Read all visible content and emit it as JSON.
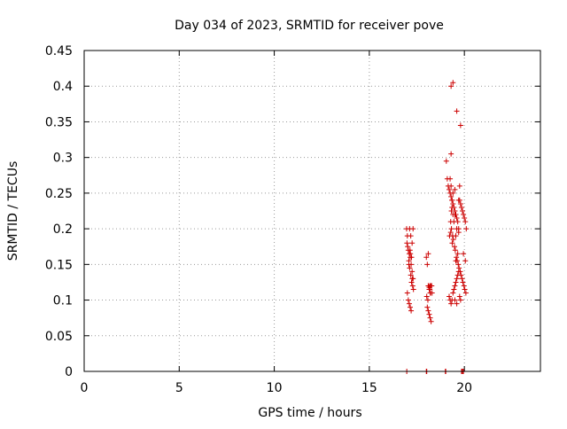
{
  "chart_data": {
    "type": "scatter",
    "title": "Day 034 of 2023, SRMTID for receiver pove",
    "xlabel": "GPS time / hours",
    "ylabel": "SRMTID / TECUs",
    "xlim": [
      0,
      24
    ],
    "ylim": [
      0,
      0.45
    ],
    "x_ticks": [
      0,
      5,
      10,
      15,
      20
    ],
    "x_tick_labels": [
      "0",
      "5",
      "10",
      "15",
      "20"
    ],
    "y_ticks": [
      0,
      0.05,
      0.1,
      0.15,
      0.2,
      0.25,
      0.3,
      0.35,
      0.4,
      0.45
    ],
    "y_tick_labels": [
      "0",
      "0.05",
      "0.1",
      "0.15",
      "0.2",
      "0.25",
      "0.3",
      "0.35",
      "0.4",
      "0.45"
    ],
    "grid": true,
    "marker": "plus",
    "color": "#cc0000",
    "series": [
      {
        "x": [
          16.96,
          17.0,
          17.05,
          17.1,
          17.15,
          17.2,
          17.25,
          17.3,
          16.98,
          17.02,
          17.08,
          17.12,
          17.18,
          17.22,
          17.28,
          17.32,
          17.0,
          17.05,
          17.1,
          17.15,
          17.2,
          17.25,
          17.3,
          17.12,
          17.18,
          17.22,
          17.08,
          17.14,
          17.26,
          17.16,
          18.0,
          18.05,
          18.1,
          18.15,
          18.2,
          18.25,
          18.3,
          18.02,
          18.08,
          18.12,
          18.18,
          18.22,
          18.28,
          18.05,
          18.1,
          18.15,
          18.2,
          18.25,
          18.1,
          18.2,
          18.15,
          19.05,
          19.1,
          19.15,
          19.2,
          19.25,
          19.3,
          19.35,
          19.4,
          19.45,
          19.5,
          19.55,
          19.6,
          19.65,
          19.7,
          19.75,
          19.8,
          19.85,
          19.9,
          19.95,
          20.0,
          20.05,
          20.1,
          19.22,
          19.28,
          19.32,
          19.38,
          19.42,
          19.48,
          19.52,
          19.58,
          19.62,
          19.68,
          19.72,
          19.78,
          19.82,
          19.88,
          19.92,
          19.98,
          20.02,
          20.08,
          19.2,
          19.25,
          19.3,
          19.35,
          19.4,
          19.45,
          19.5,
          19.55,
          19.6,
          19.65,
          19.7,
          19.75,
          19.8,
          19.3,
          19.4,
          19.5,
          19.6,
          19.7,
          19.35,
          19.45,
          19.55,
          19.65,
          19.25,
          19.35,
          19.55,
          19.75,
          19.4,
          19.6,
          19.8,
          19.3,
          19.5,
          19.7,
          19.95,
          20.05,
          19.5,
          19.6,
          19.3,
          19.4,
          19.28,
          19.32,
          19.36,
          16.97,
          18.0,
          18.02,
          19.0,
          19.02,
          19.85,
          19.9,
          19.95
        ],
        "y": [
          0.2,
          0.19,
          0.17,
          0.165,
          0.16,
          0.15,
          0.14,
          0.13,
          0.18,
          0.175,
          0.155,
          0.145,
          0.135,
          0.125,
          0.12,
          0.115,
          0.11,
          0.1,
          0.095,
          0.09,
          0.085,
          0.18,
          0.2,
          0.2,
          0.19,
          0.16,
          0.15,
          0.17,
          0.13,
          0.165,
          0.16,
          0.15,
          0.12,
          0.115,
          0.11,
          0.12,
          0.11,
          0.105,
          0.1,
          0.12,
          0.115,
          0.11,
          0.12,
          0.09,
          0.085,
          0.08,
          0.075,
          0.07,
          0.165,
          0.12,
          0.118,
          0.295,
          0.27,
          0.26,
          0.255,
          0.25,
          0.245,
          0.24,
          0.235,
          0.23,
          0.225,
          0.22,
          0.215,
          0.21,
          0.2,
          0.24,
          0.235,
          0.23,
          0.225,
          0.22,
          0.215,
          0.21,
          0.2,
          0.19,
          0.195,
          0.2,
          0.19,
          0.185,
          0.175,
          0.17,
          0.16,
          0.155,
          0.15,
          0.145,
          0.14,
          0.135,
          0.13,
          0.125,
          0.12,
          0.115,
          0.11,
          0.105,
          0.1,
          0.095,
          0.1,
          0.11,
          0.115,
          0.12,
          0.125,
          0.13,
          0.135,
          0.14,
          0.105,
          0.1,
          0.26,
          0.25,
          0.22,
          0.2,
          0.195,
          0.23,
          0.21,
          0.19,
          0.165,
          0.27,
          0.24,
          0.155,
          0.26,
          0.405,
          0.365,
          0.345,
          0.305,
          0.255,
          0.24,
          0.165,
          0.155,
          0.1,
          0.095,
          0.4,
          0.22,
          0.21,
          0.225,
          0.18,
          0,
          0,
          0,
          0,
          0,
          0,
          0,
          0
        ]
      }
    ]
  }
}
